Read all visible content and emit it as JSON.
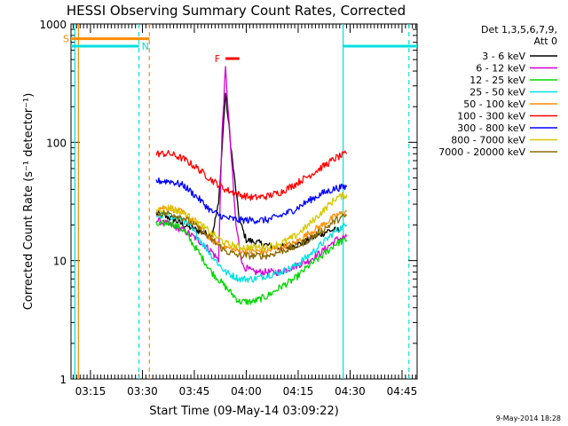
{
  "chart_data": {
    "type": "line",
    "title": "HESSI Observing Summary Count Rates, Corrected",
    "xlabel": "Start Time (09-May-14 03:09:22)",
    "ylabel": "Corrected Count Rate (s⁻¹ detector⁻¹)",
    "ylog": true,
    "ylim": [
      1,
      1000
    ],
    "yticks": [
      {
        "value": 1,
        "label": "1"
      },
      {
        "value": 10,
        "label": "10"
      },
      {
        "value": 100,
        "label": "100"
      },
      {
        "value": 1000,
        "label": "1000"
      }
    ],
    "xlim": [
      "03:09:22",
      "04:49:22"
    ],
    "xticks": [
      {
        "time": "03:15",
        "label": "03:15"
      },
      {
        "time": "03:30",
        "label": "03:30"
      },
      {
        "time": "03:45",
        "label": "03:45"
      },
      {
        "time": "04:00",
        "label": "04:00"
      },
      {
        "time": "04:15",
        "label": "04:15"
      },
      {
        "time": "04:30",
        "label": "04:30"
      },
      {
        "time": "04:45",
        "label": "04:45"
      }
    ],
    "legend": {
      "title_line1": "Det 1,3,5,6,7,9,",
      "title_line2": "Att 0",
      "placement": "right"
    },
    "series": [
      {
        "name": "3 - 6 keV",
        "color": "#000000",
        "x": [
          "03:34",
          "03:38",
          "03:42",
          "03:46",
          "03:50",
          "03:52",
          "03:54",
          "03:56",
          "03:58",
          "04:00",
          "04:04",
          "04:08",
          "04:12",
          "04:16",
          "04:20",
          "04:24",
          "04:27"
        ],
        "y": [
          25,
          23,
          20,
          18,
          16,
          30,
          260,
          70,
          22,
          15,
          14,
          13,
          13,
          14,
          16,
          18,
          18
        ]
      },
      {
        "name": "6 - 12 keV",
        "color": "#d600d6",
        "x": [
          "03:34",
          "03:38",
          "03:42",
          "03:46",
          "03:50",
          "03:52",
          "03:53",
          "03:54",
          "03:55",
          "03:57",
          "03:59",
          "04:02",
          "04:06",
          "04:10",
          "04:14",
          "04:18",
          "04:22",
          "04:26",
          "04:29"
        ],
        "y": [
          22,
          20,
          18,
          15,
          12,
          10,
          120,
          420,
          150,
          20,
          9,
          8,
          8,
          8,
          9,
          10,
          12,
          15,
          16
        ]
      },
      {
        "name": "12 - 25 keV",
        "color": "#00d600",
        "x": [
          "03:34",
          "03:38",
          "03:42",
          "03:46",
          "03:50",
          "03:54",
          "03:58",
          "04:02",
          "04:06",
          "04:10",
          "04:14",
          "04:18",
          "04:22",
          "04:26",
          "04:29"
        ],
        "y": [
          20,
          21,
          18,
          12,
          8,
          6,
          4.5,
          4.5,
          5,
          6,
          7,
          9,
          11,
          14,
          15
        ]
      },
      {
        "name": "25 - 50 keV",
        "color": "#00e0e0",
        "x": [
          "03:34",
          "03:38",
          "03:42",
          "03:46",
          "03:50",
          "03:54",
          "03:58",
          "04:02",
          "04:06",
          "04:10",
          "04:14",
          "04:18",
          "04:22",
          "04:26",
          "04:29"
        ],
        "y": [
          24,
          24,
          22,
          16,
          11,
          8,
          7,
          7,
          7.5,
          8,
          9,
          11,
          14,
          18,
          20
        ]
      },
      {
        "name": "50 - 100 keV",
        "color": "#ff8c00",
        "x": [
          "03:34",
          "03:38",
          "03:42",
          "03:46",
          "03:50",
          "03:54",
          "03:58",
          "04:02",
          "04:06",
          "04:10",
          "04:14",
          "04:18",
          "04:22",
          "04:26",
          "04:29"
        ],
        "y": [
          28,
          28,
          25,
          20,
          15,
          13,
          12,
          12,
          12,
          13,
          14,
          17,
          20,
          24,
          26
        ]
      },
      {
        "name": "100 - 300 keV",
        "color": "#ff0000",
        "x": [
          "03:34",
          "03:38",
          "03:42",
          "03:46",
          "03:50",
          "03:54",
          "03:58",
          "04:02",
          "04:06",
          "04:10",
          "04:14",
          "04:18",
          "04:22",
          "04:26",
          "04:29"
        ],
        "y": [
          80,
          80,
          72,
          60,
          48,
          40,
          36,
          34,
          35,
          38,
          44,
          52,
          62,
          74,
          80
        ]
      },
      {
        "name": "300 - 800 keV",
        "color": "#0000ff",
        "x": [
          "03:34",
          "03:38",
          "03:42",
          "03:46",
          "03:50",
          "03:54",
          "03:58",
          "04:02",
          "04:06",
          "04:10",
          "04:14",
          "04:18",
          "04:22",
          "04:26",
          "04:29"
        ],
        "y": [
          47,
          47,
          43,
          34,
          26,
          23,
          22,
          22,
          22,
          24,
          27,
          32,
          37,
          41,
          42
        ]
      },
      {
        "name": "800 - 7000 keV",
        "color": "#d6c800",
        "x": [
          "03:34",
          "03:38",
          "03:42",
          "03:46",
          "03:50",
          "03:54",
          "03:58",
          "04:02",
          "04:06",
          "04:10",
          "04:14",
          "04:18",
          "04:22",
          "04:26",
          "04:29"
        ],
        "y": [
          27,
          28,
          25,
          21,
          17,
          14,
          13,
          13,
          13,
          14,
          16,
          20,
          26,
          34,
          36
        ]
      },
      {
        "name": "7000 - 20000 keV",
        "color": "#8b6b00",
        "x": [
          "03:34",
          "03:38",
          "03:42",
          "03:46",
          "03:50",
          "03:54",
          "03:58",
          "04:02",
          "04:06",
          "04:10",
          "04:14",
          "04:18",
          "04:22",
          "04:26",
          "04:29"
        ],
        "y": [
          25,
          25,
          23,
          19,
          15,
          12,
          11,
          11,
          11,
          12,
          13,
          15,
          18,
          22,
          24
        ]
      }
    ],
    "flags": {
      "saa": {
        "label": "S",
        "color": "#ff8c00",
        "start": "03:09:22",
        "end": "03:32:00",
        "level": 750
      },
      "night": {
        "label": "N",
        "color": "#00e0e0",
        "start": "03:09:22",
        "end": "03:29:00",
        "level": 650
      },
      "night2": {
        "color": "#00e0e0",
        "start": "04:28:00",
        "end": "04:49:22",
        "level": 650
      },
      "flare": {
        "label": "F",
        "color": "#ff0000",
        "start": "03:54:00",
        "end": "03:58:00",
        "level": 510
      }
    },
    "vlines": [
      {
        "time": "03:10:30",
        "color": "#00e0e0",
        "style": "solid"
      },
      {
        "time": "03:11:30",
        "color": "#ff8c00",
        "style": "solid"
      },
      {
        "time": "03:29:00",
        "color": "#00e0e0",
        "style": "dashed"
      },
      {
        "time": "03:32:00",
        "color": "#ff8c00",
        "style": "dashed"
      },
      {
        "time": "04:28:00",
        "color": "#00e0e0",
        "style": "solid"
      },
      {
        "time": "04:47:00",
        "color": "#00e0e0",
        "style": "dashed"
      }
    ]
  },
  "footer": {
    "timestamp": "9-May-2014 18:28"
  }
}
